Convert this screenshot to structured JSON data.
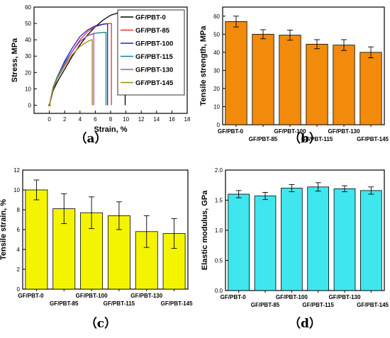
{
  "chart_data": [
    {
      "id": "a",
      "type": "line",
      "panel_label": "（a）",
      "xlabel": "Strain, %",
      "ylabel": "Stress, MPa",
      "xlim": [
        -2,
        18
      ],
      "ylim": [
        -5,
        60
      ],
      "xticks": [
        "0",
        "2",
        "4",
        "6",
        "8",
        "10",
        "12",
        "14",
        "16",
        "18"
      ],
      "yticks": [
        "0",
        "10",
        "20",
        "30",
        "40",
        "50",
        "60"
      ],
      "legend_position": "top-right",
      "series": [
        {
          "name": "GF/PBT-0",
          "color": "#000000",
          "x": [
            0,
            0.5,
            1,
            2,
            3,
            4,
            5,
            6,
            7,
            8,
            9,
            9.7,
            9.9,
            9.9
          ],
          "y": [
            0,
            9,
            14,
            22,
            30,
            37,
            43,
            48,
            52,
            55,
            56.5,
            57,
            57,
            0
          ]
        },
        {
          "name": "GF/PBT-85",
          "color": "#e8302a",
          "x": [
            0,
            0.5,
            1,
            2,
            3,
            4,
            5,
            6,
            7,
            7.9,
            8.1,
            8.1
          ],
          "y": [
            0,
            10,
            16,
            25,
            33,
            40,
            45,
            48,
            49.5,
            50,
            50,
            0
          ]
        },
        {
          "name": "GF/PBT-100",
          "color": "#1f1fd0",
          "x": [
            0,
            0.5,
            1,
            2,
            3,
            4,
            5,
            6,
            7,
            7.5,
            7.6,
            7.6
          ],
          "y": [
            0,
            11,
            17,
            27,
            35,
            42,
            46,
            48.5,
            49.5,
            49.8,
            49.8,
            0
          ]
        },
        {
          "name": "GF/PBT-115",
          "color": "#13808a",
          "x": [
            0,
            0.5,
            1,
            2,
            3,
            4,
            5,
            6,
            7,
            7.4,
            7.4
          ],
          "y": [
            0,
            11,
            17,
            26,
            33,
            39,
            42.5,
            44,
            44.5,
            44.5,
            0
          ]
        },
        {
          "name": "GF/PBT-130",
          "color": "#c23fc9",
          "x": [
            0,
            0.5,
            1,
            2,
            3,
            4,
            5,
            5.7,
            5.8,
            5.8
          ],
          "y": [
            0,
            10,
            16,
            25,
            33,
            39,
            42.5,
            43.8,
            44,
            0
          ]
        },
        {
          "name": "GF/PBT-145",
          "color": "#9a8a12",
          "x": [
            0,
            0.5,
            1,
            2,
            3,
            4,
            5,
            5.5,
            5.6,
            5.6
          ],
          "y": [
            0,
            10,
            16,
            24,
            31,
            36,
            39,
            40,
            40,
            0
          ]
        }
      ]
    },
    {
      "id": "b",
      "type": "bar",
      "panel_label": "（b）",
      "ylabel": "Tensile strength, MPa",
      "ylim": [
        0,
        65
      ],
      "yticks": [
        "0",
        "10",
        "20",
        "30",
        "40",
        "50",
        "60"
      ],
      "bar_color": "#f28a0c",
      "categories": [
        "GF/PBT-0",
        "GF/PBT-85",
        "GF/PBT-100",
        "GF/PBT-115",
        "GF/PBT-130",
        "GF/PBT-145"
      ],
      "values": [
        57,
        50,
        49.5,
        44.5,
        44,
        40
      ],
      "errors": [
        3,
        2.5,
        2.8,
        2.5,
        3,
        3
      ]
    },
    {
      "id": "c",
      "type": "bar",
      "panel_label": "（c）",
      "ylabel": "Tensile strain, %",
      "ylim": [
        0,
        12
      ],
      "yticks": [
        "0",
        "2",
        "4",
        "6",
        "8",
        "10",
        "12"
      ],
      "bar_color": "#f4f400",
      "categories": [
        "GF/PBT-0",
        "GF/PBT-85",
        "GF/PBT-100",
        "GF/PBT-115",
        "GF/PBT-130",
        "GF/PBT-145"
      ],
      "values": [
        10,
        8.1,
        7.7,
        7.4,
        5.8,
        5.6
      ],
      "errors": [
        1,
        1.5,
        1.6,
        1.4,
        1.6,
        1.5
      ]
    },
    {
      "id": "d",
      "type": "bar",
      "panel_label": "（d）",
      "ylabel": "Elastic modulus, GPa",
      "ylim": [
        0,
        2.0
      ],
      "yticks": [
        "0.0",
        "0.5",
        "1.0",
        "1.5",
        "2.0"
      ],
      "bar_color": "#3fe6ee",
      "categories": [
        "GF/PBT-0",
        "GF/PBT-85",
        "GF/PBT-100",
        "GF/PBT-115",
        "GF/PBT-130",
        "GF/PBT-145"
      ],
      "values": [
        1.6,
        1.57,
        1.7,
        1.72,
        1.69,
        1.66
      ],
      "errors": [
        0.06,
        0.06,
        0.06,
        0.07,
        0.05,
        0.06
      ]
    }
  ]
}
